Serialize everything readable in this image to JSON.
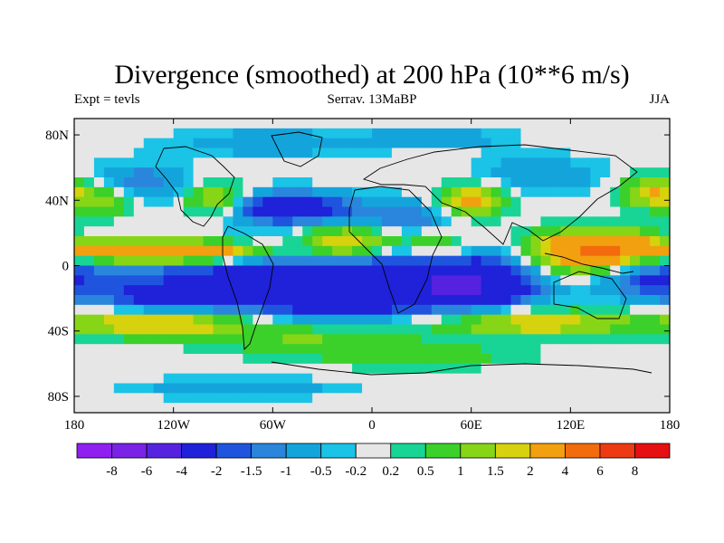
{
  "chart_data": {
    "type": "heatmap",
    "title": "Divergence (smoothed) at 200 hPa (10**6 m/s)",
    "subtitle_left": "Expt = tevls",
    "subtitle_center": "Serrav.  13MaBP",
    "subtitle_right": "JJA",
    "xlabel": "",
    "ylabel": "",
    "x_ticks": [
      "180",
      "120W",
      "60W",
      "0",
      "60E",
      "120E",
      "180"
    ],
    "x_tick_values": [
      -180,
      -120,
      -60,
      0,
      60,
      120,
      180
    ],
    "y_ticks": [
      "80N",
      "40N",
      "0",
      "40S",
      "80S"
    ],
    "y_tick_values": [
      80,
      40,
      0,
      -40,
      -80
    ],
    "xlim": [
      -180,
      180
    ],
    "ylim": [
      -90,
      90
    ],
    "colorbar_labels": [
      "-8",
      "-6",
      "-4",
      "-2",
      "-1.5",
      "-1",
      "-0.5",
      "-0.2",
      "0.2",
      "0.5",
      "1",
      "1.5",
      "2",
      "4",
      "6",
      "8"
    ],
    "colorbar_levels": [
      -8,
      -6,
      -4,
      -2,
      -1.5,
      -1,
      -0.5,
      -0.2,
      0.2,
      0.5,
      1,
      1.5,
      2,
      4,
      6,
      8
    ],
    "colorbar_colors": [
      "#8f1ef0",
      "#7a22e6",
      "#5523e0",
      "#1f22d8",
      "#1f55de",
      "#2a86dd",
      "#14a4dc",
      "#1bc3e6",
      "#e6e6e6",
      "#18d596",
      "#3cd02b",
      "#86d517",
      "#d6d20e",
      "#f2a00f",
      "#f26b0d",
      "#ee3a12",
      "#e60f12"
    ],
    "field_features": [
      {
        "lon": 0,
        "lat": 0,
        "value": -3,
        "spread_lon": 180,
        "spread_lat": 14
      },
      {
        "lon": -110,
        "lat": 8,
        "value": 4.5,
        "spread_lon": 55,
        "spread_lat": 7
      },
      {
        "lon": -150,
        "lat": 8,
        "value": 2,
        "spread_lon": 30,
        "spread_lat": 7
      },
      {
        "lon": -15,
        "lat": 12,
        "value": 3,
        "spread_lon": 30,
        "spread_lat": 12
      },
      {
        "lon": 40,
        "lat": 10,
        "value": 2,
        "spread_lon": 25,
        "spread_lat": 10
      },
      {
        "lon": 120,
        "lat": 5,
        "value": 4,
        "spread_lon": 35,
        "spread_lat": 14
      },
      {
        "lon": 150,
        "lat": 10,
        "value": 3,
        "spread_lon": 30,
        "spread_lat": 10
      },
      {
        "lon": -20,
        "lat": -20,
        "value": -3.5,
        "spread_lon": 55,
        "spread_lat": 12
      },
      {
        "lon": 60,
        "lat": -15,
        "value": -3,
        "spread_lon": 40,
        "spread_lat": 12
      },
      {
        "lon": -120,
        "lat": -20,
        "value": -2.5,
        "spread_lon": 45,
        "spread_lat": 10
      },
      {
        "lon": 170,
        "lat": -10,
        "value": -1.5,
        "spread_lon": 30,
        "spread_lat": 12
      },
      {
        "lon": -130,
        "lat": -35,
        "value": 2.5,
        "spread_lon": 50,
        "spread_lat": 8
      },
      {
        "lon": 100,
        "lat": -35,
        "value": 2,
        "spread_lon": 60,
        "spread_lat": 8
      },
      {
        "lon": -40,
        "lat": -45,
        "value": 1,
        "spread_lon": 60,
        "spread_lat": 10
      },
      {
        "lon": 30,
        "lat": -55,
        "value": 0.8,
        "spread_lon": 60,
        "spread_lat": 8
      },
      {
        "lon": -50,
        "lat": 35,
        "value": -3,
        "spread_lon": 40,
        "spread_lat": 10
      },
      {
        "lon": 20,
        "lat": 30,
        "value": -1.5,
        "spread_lon": 30,
        "spread_lat": 10
      },
      {
        "lon": -95,
        "lat": 40,
        "value": 2,
        "spread_lon": 20,
        "spread_lat": 10
      },
      {
        "lon": -160,
        "lat": 40,
        "value": 1.5,
        "spread_lon": 20,
        "spread_lat": 10
      },
      {
        "lon": 60,
        "lat": 40,
        "value": 2.5,
        "spread_lon": 20,
        "spread_lat": 10
      },
      {
        "lon": -140,
        "lat": 50,
        "value": -1.5,
        "spread_lon": 30,
        "spread_lat": 12
      },
      {
        "lon": 170,
        "lat": 45,
        "value": 2,
        "spread_lon": 20,
        "spread_lat": 10
      },
      {
        "lon": 100,
        "lat": 55,
        "value": -1,
        "spread_lon": 40,
        "spread_lat": 12
      },
      {
        "lon": -60,
        "lat": 75,
        "value": -1,
        "spread_lon": 60,
        "spread_lat": 8
      },
      {
        "lon": 40,
        "lat": 78,
        "value": -1,
        "spread_lon": 40,
        "spread_lat": 6
      },
      {
        "lon": -80,
        "lat": -75,
        "value": -1,
        "spread_lon": 60,
        "spread_lat": 6
      }
    ]
  }
}
